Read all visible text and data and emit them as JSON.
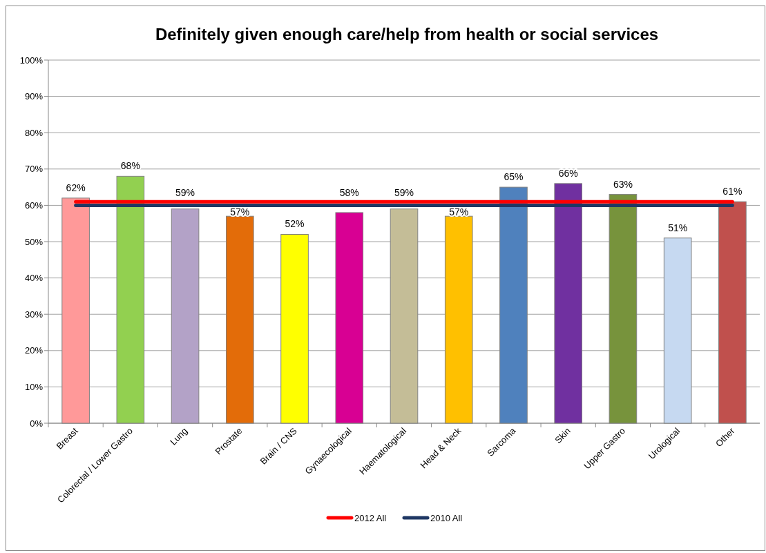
{
  "chart_data": {
    "type": "bar",
    "title": "Definitely given enough care/help from health or social services",
    "categories": [
      "Breast",
      "Colorectal / Lower Gastro",
      "Lung",
      "Prostate",
      "Brain / CNS",
      "Gynaecological",
      "Haematological",
      "Head & Neck",
      "Sarcoma",
      "Skin",
      "Upper Gastro",
      "Urological",
      "Other"
    ],
    "series": [
      {
        "colors": [
          "#ff9999",
          "#92d050",
          "#b3a2c7",
          "#e36c09",
          "#ffff00",
          "#d80093",
          "#c4bd97",
          "#ffc000",
          "#4f81bd",
          "#7030a0",
          "#77933c",
          "#c6d9f1",
          "#c0504d"
        ],
        "values": [
          62,
          68,
          59,
          57,
          52,
          58,
          59,
          57,
          65,
          66,
          63,
          51,
          61
        ],
        "value_labels": [
          "62%",
          "68%",
          "59%",
          "57%",
          "52%",
          "58%",
          "59%",
          "57%",
          "65%",
          "66%",
          "63%",
          "51%",
          "61%"
        ]
      },
      {
        "type": "line",
        "name": "2012 All",
        "color": "#ff0000",
        "values": [
          61,
          61,
          61,
          61,
          61,
          61,
          61,
          61,
          61,
          61,
          61,
          61,
          61
        ]
      },
      {
        "type": "line",
        "name": "2010 All",
        "color": "#1f3864",
        "values": [
          60,
          60,
          60,
          60,
          60,
          60,
          60,
          60,
          60,
          60,
          60,
          60,
          60
        ]
      }
    ],
    "ylim": [
      0,
      100
    ],
    "yticks": [
      {
        "value": 0,
        "label": "0%"
      },
      {
        "value": 10,
        "label": "10%"
      },
      {
        "value": 20,
        "label": "20%"
      },
      {
        "value": 30,
        "label": "30%"
      },
      {
        "value": 40,
        "label": "40%"
      },
      {
        "value": 50,
        "label": "50%"
      },
      {
        "value": 60,
        "label": "60%"
      },
      {
        "value": 70,
        "label": "70%"
      },
      {
        "value": 80,
        "label": "80%"
      },
      {
        "value": 90,
        "label": "90%"
      },
      {
        "value": 100,
        "label": "100%"
      }
    ],
    "grid": "y",
    "legend": "bottom"
  }
}
